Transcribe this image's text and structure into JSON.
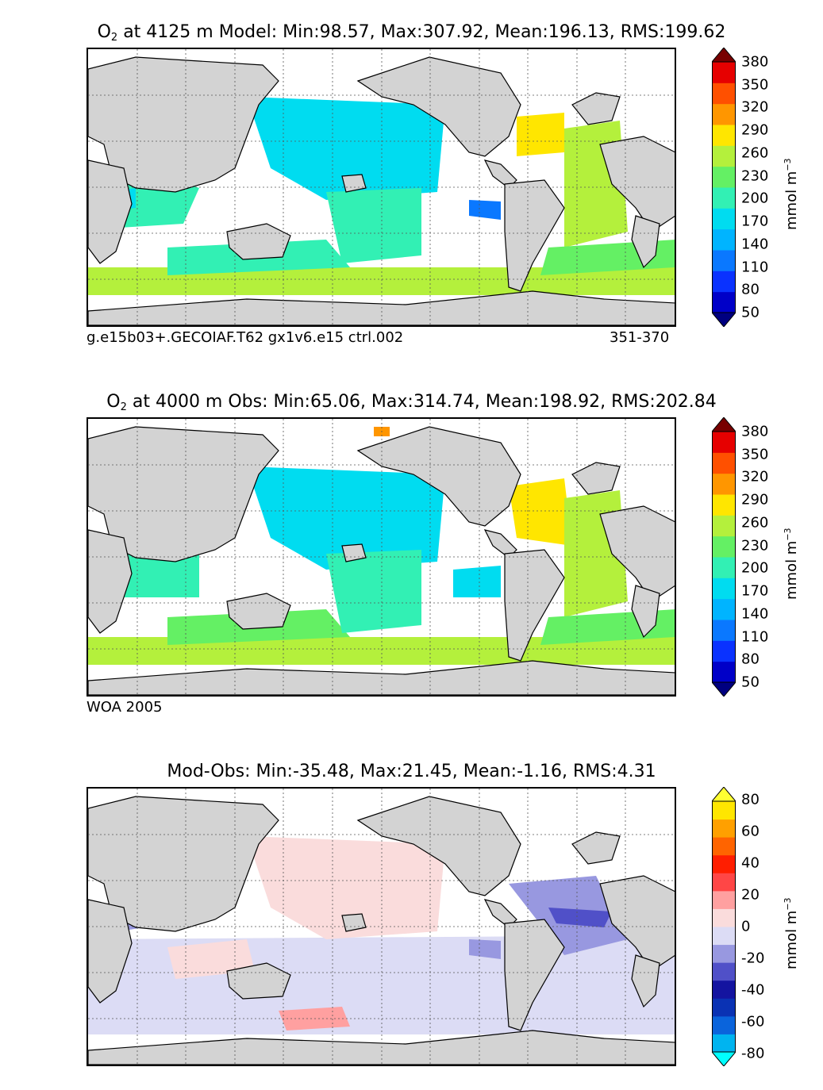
{
  "panels": [
    {
      "title": {
        "species": "O",
        "subscript": "2",
        "rest": " at 4125 m Model: Min:98.57, Max:307.92, Mean:196.13, RMS:199.62"
      },
      "footer_left": "g.e15b03+.GECOIAF.T62 gx1v6.e15 ctrl.002",
      "footer_right": "351-370",
      "colorbar": {
        "ticks": [
          "380",
          "350",
          "320",
          "290",
          "260",
          "230",
          "200",
          "170",
          "140",
          "110",
          "80",
          "50"
        ],
        "colors": [
          "#000080",
          "#0000c8",
          "#0a32ff",
          "#0a78ff",
          "#00b4ff",
          "#00dcf0",
          "#32f0b4",
          "#64f064",
          "#b4f03c",
          "#ffe600",
          "#ff9600",
          "#ff5000",
          "#e60000",
          "#780000"
        ],
        "unit": "mmol m",
        "unit_sup": "−3"
      }
    },
    {
      "title": {
        "species": "O",
        "subscript": "2",
        "rest": " at 4000 m Obs: Min:65.06, Max:314.74, Mean:198.92, RMS:202.84"
      },
      "footer_left": "WOA 2005",
      "footer_right": "",
      "colorbar": {
        "ticks": [
          "380",
          "350",
          "320",
          "290",
          "260",
          "230",
          "200",
          "170",
          "140",
          "110",
          "80",
          "50"
        ],
        "colors": [
          "#000080",
          "#0000c8",
          "#0a32ff",
          "#0a78ff",
          "#00b4ff",
          "#00dcf0",
          "#32f0b4",
          "#64f064",
          "#b4f03c",
          "#ffe600",
          "#ff9600",
          "#ff5000",
          "#e60000",
          "#780000"
        ],
        "unit": "mmol m",
        "unit_sup": "−3"
      }
    },
    {
      "title": {
        "species": "",
        "subscript": "",
        "rest": "Mod-Obs: Min:-35.48, Max:21.45, Mean:-1.16, RMS:4.31"
      },
      "footer_left": "",
      "footer_right": "",
      "colorbar": {
        "ticks": [
          "80",
          "60",
          "40",
          "20",
          "0",
          "-20",
          "-40",
          "-60",
          "-80"
        ],
        "colors": [
          "#00ffff",
          "#00b4f0",
          "#0a64dc",
          "#0a32b4",
          "#1414a0",
          "#5050c8",
          "#9898e0",
          "#dcdcf5",
          "#fadcdc",
          "#ffa0a0",
          "#ff4646",
          "#ff1e00",
          "#ff6400",
          "#ffa000",
          "#ffe600",
          "#ffff32"
        ],
        "unit": "mmol m",
        "unit_sup": "−3"
      }
    }
  ],
  "map_colors": {
    "land": "#d3d3d3",
    "coast": "#000000",
    "grid": "#555555"
  }
}
